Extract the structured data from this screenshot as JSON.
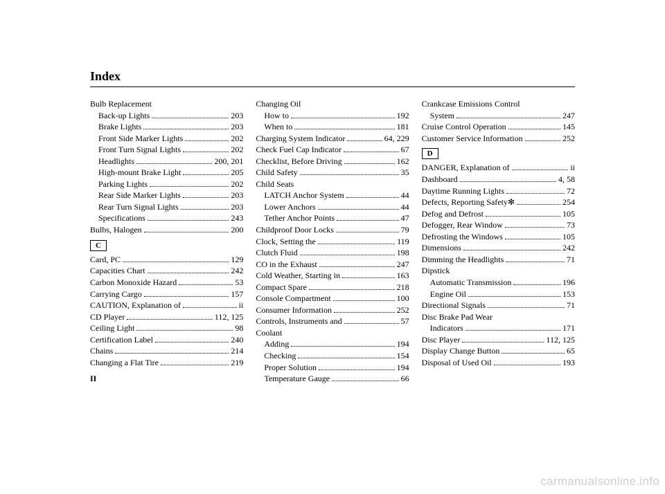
{
  "title": "Index",
  "pagenum": "II",
  "watermark": "carmanualsonline.info",
  "columns": [
    [
      {
        "type": "entry",
        "label": "Bulb Replacement",
        "page": ""
      },
      {
        "type": "entry",
        "label": "Back-up Lights",
        "page": "203",
        "sub": true
      },
      {
        "type": "entry",
        "label": "Brake Lights",
        "page": "203",
        "sub": true
      },
      {
        "type": "entry",
        "label": "Front Side Marker Lights",
        "page": "202",
        "sub": true
      },
      {
        "type": "entry",
        "label": "Front Turn Signal Lights",
        "page": "202",
        "sub": true
      },
      {
        "type": "entry",
        "label": "Headlights",
        "page": "200, 201",
        "sub": true
      },
      {
        "type": "entry",
        "label": "High-mount Brake Light",
        "page": "205",
        "sub": true
      },
      {
        "type": "entry",
        "label": "Parking Lights",
        "page": "202",
        "sub": true
      },
      {
        "type": "entry",
        "label": "Rear Side Marker Lights",
        "page": "203",
        "sub": true
      },
      {
        "type": "entry",
        "label": "Rear Turn Signal Lights",
        "page": "203",
        "sub": true
      },
      {
        "type": "entry",
        "label": "Specifications",
        "page": "243",
        "sub": true
      },
      {
        "type": "entry",
        "label": "Bulbs, Halogen",
        "page": "200"
      },
      {
        "type": "letter",
        "value": "C"
      },
      {
        "type": "entry",
        "label": "Card, PC",
        "page": "129"
      },
      {
        "type": "entry",
        "label": "Capacities Chart",
        "page": "242"
      },
      {
        "type": "entry",
        "label": "Carbon Monoxide Hazard",
        "page": "53"
      },
      {
        "type": "entry",
        "label": "Carrying Cargo",
        "page": "157"
      },
      {
        "type": "entry",
        "label": "CAUTION, Explanation of",
        "page": "ii"
      },
      {
        "type": "entry",
        "label": "CD Player",
        "page": "112, 125"
      },
      {
        "type": "entry",
        "label": "Ceiling Light",
        "page": "98"
      },
      {
        "type": "entry",
        "label": "Certification Label",
        "page": "240"
      },
      {
        "type": "entry",
        "label": "Chains",
        "page": "214"
      },
      {
        "type": "entry",
        "label": "Changing a Flat Tire",
        "page": "219"
      }
    ],
    [
      {
        "type": "entry",
        "label": "Changing Oil",
        "page": ""
      },
      {
        "type": "entry",
        "label": "How to",
        "page": "192",
        "sub": true
      },
      {
        "type": "entry",
        "label": "When to",
        "page": "181",
        "sub": true
      },
      {
        "type": "entry",
        "label": "Charging System Indicator",
        "page": "64, 229"
      },
      {
        "type": "entry",
        "label": "Check Fuel Cap Indicator",
        "page": "67"
      },
      {
        "type": "entry",
        "label": "Checklist, Before Driving",
        "page": "162"
      },
      {
        "type": "entry",
        "label": "Child Safety",
        "page": "35"
      },
      {
        "type": "entry",
        "label": "Child Seats",
        "page": ""
      },
      {
        "type": "entry",
        "label": "LATCH Anchor System",
        "page": "44",
        "sub": true
      },
      {
        "type": "entry",
        "label": "Lower Anchors",
        "page": "44",
        "sub": true
      },
      {
        "type": "entry",
        "label": "Tether Anchor Points",
        "page": "47",
        "sub": true
      },
      {
        "type": "entry",
        "label": "Childproof Door Locks",
        "page": "79"
      },
      {
        "type": "entry",
        "label": "Clock, Setting the",
        "page": "119"
      },
      {
        "type": "entry",
        "label": "Clutch Fluid",
        "page": "198"
      },
      {
        "type": "entry",
        "label": "CO in the Exhaust",
        "page": "247"
      },
      {
        "type": "entry",
        "label": "Cold Weather, Starting in",
        "page": "163"
      },
      {
        "type": "entry",
        "label": "Compact Spare",
        "page": "218"
      },
      {
        "type": "entry",
        "label": "Console Compartment",
        "page": "100"
      },
      {
        "type": "entry",
        "label": "Consumer Information",
        "page": "252"
      },
      {
        "type": "entry",
        "label": "Controls, Instruments and",
        "page": "57"
      },
      {
        "type": "entry",
        "label": "Coolant",
        "page": ""
      },
      {
        "type": "entry",
        "label": "Adding",
        "page": "194",
        "sub": true
      },
      {
        "type": "entry",
        "label": "Checking",
        "page": "154",
        "sub": true
      },
      {
        "type": "entry",
        "label": "Proper Solution",
        "page": "194",
        "sub": true
      },
      {
        "type": "entry",
        "label": "Temperature Gauge",
        "page": "66",
        "sub": true
      }
    ],
    [
      {
        "type": "entry",
        "label": "Crankcase Emissions Control",
        "page": ""
      },
      {
        "type": "entry",
        "label": "System",
        "page": "247",
        "sub": true
      },
      {
        "type": "entry",
        "label": "Cruise Control Operation",
        "page": "145"
      },
      {
        "type": "entry",
        "label": "Customer Service Information",
        "page": "252"
      },
      {
        "type": "letter",
        "value": "D"
      },
      {
        "type": "entry",
        "label": "DANGER, Explanation of",
        "page": "ii"
      },
      {
        "type": "entry",
        "label": "Dashboard",
        "page": "4, 58"
      },
      {
        "type": "entry",
        "label": "Daytime Running Lights",
        "page": "72"
      },
      {
        "type": "entry",
        "label": "Defects, Reporting Safety",
        "page": "254",
        "star": true
      },
      {
        "type": "entry",
        "label": "Defog and Defrost",
        "page": "105"
      },
      {
        "type": "entry",
        "label": "Defogger, Rear Window",
        "page": "73"
      },
      {
        "type": "entry",
        "label": "Defrosting the Windows",
        "page": "105"
      },
      {
        "type": "entry",
        "label": "Dimensions",
        "page": "242"
      },
      {
        "type": "entry",
        "label": "Dimming the Headlights",
        "page": "71"
      },
      {
        "type": "entry",
        "label": "Dipstick",
        "page": ""
      },
      {
        "type": "entry",
        "label": "Automatic Transmission",
        "page": "196",
        "sub": true
      },
      {
        "type": "entry",
        "label": "Engine Oil",
        "page": "153",
        "sub": true
      },
      {
        "type": "entry",
        "label": "Directional Signals",
        "page": "71"
      },
      {
        "type": "entry",
        "label": "Disc Brake Pad Wear",
        "page": ""
      },
      {
        "type": "entry",
        "label": "Indicators",
        "page": "171",
        "sub": true
      },
      {
        "type": "entry",
        "label": "Disc Player",
        "page": "112, 125"
      },
      {
        "type": "entry",
        "label": "Display Change Button",
        "page": "65"
      },
      {
        "type": "entry",
        "label": "Disposal of Used Oil",
        "page": "193"
      }
    ]
  ]
}
